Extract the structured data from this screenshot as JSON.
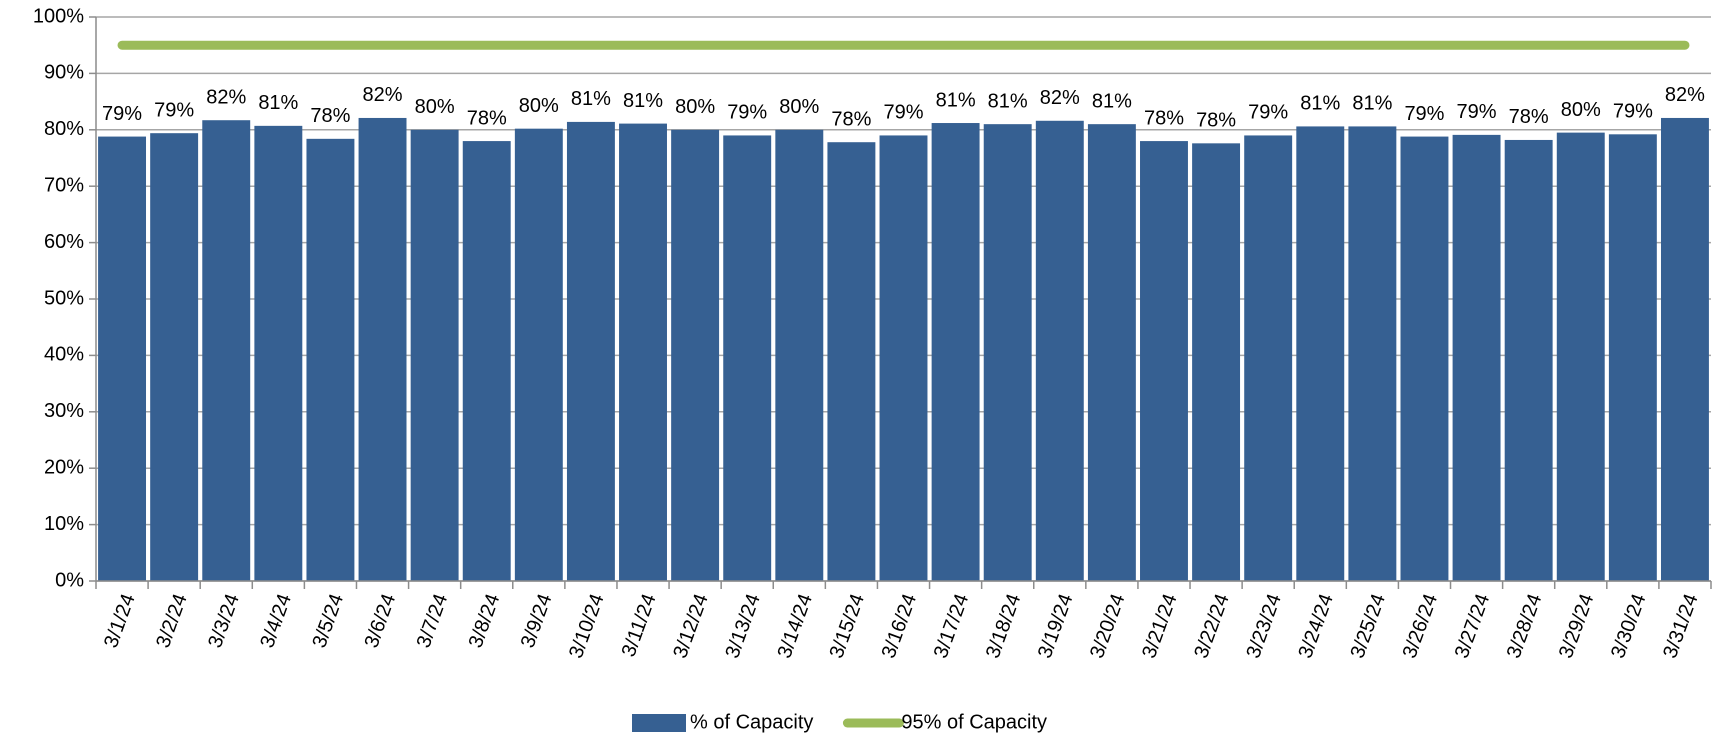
{
  "chart_data": {
    "type": "bar",
    "categories": [
      "3/1/24",
      "3/2/24",
      "3/3/24",
      "3/4/24",
      "3/5/24",
      "3/6/24",
      "3/7/24",
      "3/8/24",
      "3/9/24",
      "3/10/24",
      "3/11/24",
      "3/12/24",
      "3/13/24",
      "3/14/24",
      "3/15/24",
      "3/16/24",
      "3/17/24",
      "3/18/24",
      "3/19/24",
      "3/20/24",
      "3/21/24",
      "3/22/24",
      "3/23/24",
      "3/24/24",
      "3/25/24",
      "3/26/24",
      "3/27/24",
      "3/28/24",
      "3/29/24",
      "3/30/24",
      "3/31/24"
    ],
    "series": [
      {
        "name": "% of Capacity",
        "color": "#366092",
        "type": "bar",
        "values": [
          78.8,
          79.4,
          81.7,
          80.7,
          78.4,
          82.1,
          80.0,
          78.0,
          80.2,
          81.4,
          81.1,
          80.0,
          79.0,
          80.0,
          77.8,
          79.0,
          81.2,
          81.0,
          81.6,
          81.0,
          78.0,
          77.6,
          79.0,
          80.6,
          80.6,
          78.8,
          79.1,
          78.2,
          79.5,
          79.2,
          82.1
        ],
        "value_labels": [
          "79%",
          "79%",
          "82%",
          "81%",
          "78%",
          "82%",
          "80%",
          "78%",
          "80%",
          "81%",
          "81%",
          "80%",
          "79%",
          "80%",
          "78%",
          "79%",
          "81%",
          "81%",
          "82%",
          "81%",
          "78%",
          "78%",
          "79%",
          "81%",
          "81%",
          "79%",
          "79%",
          "78%",
          "80%",
          "79%",
          "82%"
        ]
      },
      {
        "name": "95% of Capacity",
        "color": "#9bbb59",
        "type": "line",
        "values": [
          95,
          95,
          95,
          95,
          95,
          95,
          95,
          95,
          95,
          95,
          95,
          95,
          95,
          95,
          95,
          95,
          95,
          95,
          95,
          95,
          95,
          95,
          95,
          95,
          95,
          95,
          95,
          95,
          95,
          95,
          95
        ]
      }
    ],
    "ylim": [
      0,
      100
    ],
    "yticks": [
      {
        "value": 0,
        "label": "0%"
      },
      {
        "value": 10,
        "label": "10%"
      },
      {
        "value": 20,
        "label": "20%"
      },
      {
        "value": 30,
        "label": "30%"
      },
      {
        "value": 40,
        "label": "40%"
      },
      {
        "value": 50,
        "label": "50%"
      },
      {
        "value": 60,
        "label": "60%"
      },
      {
        "value": 70,
        "label": "70%"
      },
      {
        "value": 80,
        "label": "80%"
      },
      {
        "value": 90,
        "label": "90%"
      },
      {
        "value": 100,
        "label": "100%"
      }
    ],
    "grid": true,
    "legend": "bottom"
  }
}
